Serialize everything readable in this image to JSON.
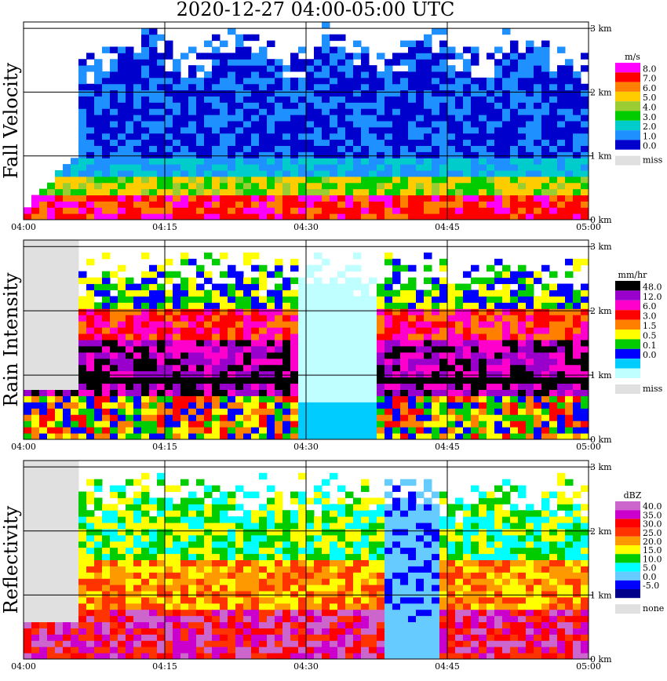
{
  "chart_data": {
    "type": "heatmap",
    "title": "2020-12-27   04:00-05:00 UTC",
    "x_ticks": [
      "04:00",
      "04:15",
      "04:30",
      "04:45",
      "05:00"
    ],
    "y_ticks": [
      "0 km",
      "1 km",
      "2 km",
      "3 km"
    ],
    "ylim_km": [
      0,
      3.1
    ],
    "panels": [
      {
        "label": "Fall Velocity",
        "unit": "m/s",
        "colorbar": [
          {
            "label": "8.0",
            "color": "#ff00ff"
          },
          {
            "label": "7.0",
            "color": "#ff0000"
          },
          {
            "label": "6.0",
            "color": "#ff8000"
          },
          {
            "label": "5.0",
            "color": "#ffcc00"
          },
          {
            "label": "4.0",
            "color": "#9acd32"
          },
          {
            "label": "3.0",
            "color": "#00cc00"
          },
          {
            "label": "2.0",
            "color": "#00cccc"
          },
          {
            "label": "1.0",
            "color": "#1e90ff"
          },
          {
            "label": "0.0",
            "color": "#0000cd"
          }
        ],
        "missing_label": "miss"
      },
      {
        "label": "Rain Intensity",
        "unit": "mm/hr",
        "colorbar": [
          {
            "label": "48.0",
            "color": "#000000"
          },
          {
            "label": "12.0",
            "color": "#9900cc"
          },
          {
            "label": "6.0",
            "color": "#ff00cc"
          },
          {
            "label": "3.0",
            "color": "#ff0000"
          },
          {
            "label": "1.5",
            "color": "#ff8000"
          },
          {
            "label": "0.5",
            "color": "#ffff00"
          },
          {
            "label": "0.1",
            "color": "#00cc00"
          },
          {
            "label": "0.0",
            "color": "#0000ff"
          }
        ],
        "extra_colors": [
          "#00ccff",
          "#c0ffff"
        ],
        "missing_label": "miss"
      },
      {
        "label": "Reflectivity",
        "unit": "dBZ",
        "colorbar": [
          {
            "label": "40.0",
            "color": "#cc66cc"
          },
          {
            "label": "35.0",
            "color": "#cc00cc"
          },
          {
            "label": "30.0",
            "color": "#ff0000"
          },
          {
            "label": "25.0",
            "color": "#ff3300"
          },
          {
            "label": "20.0",
            "color": "#ff9900"
          },
          {
            "label": "15.0",
            "color": "#ffff00"
          },
          {
            "label": "10.0",
            "color": "#00cc00"
          },
          {
            "label": "5.0",
            "color": "#00ffff"
          },
          {
            "label": "0.0",
            "color": "#66ccff"
          },
          {
            "label": "-5.0",
            "color": "#0000ff"
          }
        ],
        "extra_colors": [
          "#00008b"
        ],
        "missing_label": "none"
      }
    ]
  }
}
